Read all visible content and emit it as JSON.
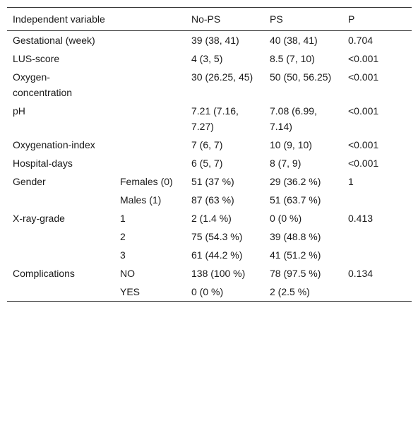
{
  "header": {
    "variable": "Independent variable",
    "sub": "",
    "nops": "No-PS",
    "ps": "PS",
    "p": "P"
  },
  "rows": [
    {
      "variable": "Gestational (week)",
      "sub": "",
      "nops": "39 (38, 41)",
      "ps": "40 (38, 41)",
      "p": "0.704"
    },
    {
      "variable": "LUS-score",
      "sub": "",
      "nops": "4 (3, 5)",
      "ps": "8.5 (7, 10)",
      "p": "<0.001"
    },
    {
      "variable": "Oxygen-concentration",
      "sub": "",
      "nops": "30 (26.25, 45)",
      "ps": "50 (50, 56.25)",
      "p": "<0.001"
    },
    {
      "variable": "pH",
      "sub": "",
      "nops": "7.21 (7.16, 7.27)",
      "ps": "7.08 (6.99, 7.14)",
      "p": "<0.001"
    },
    {
      "variable": "Oxygenation-index",
      "sub": "",
      "nops": "7 (6, 7)",
      "ps": "10 (9, 10)",
      "p": "<0.001"
    },
    {
      "variable": "Hospital-days",
      "sub": "",
      "nops": "6 (5, 7)",
      "ps": "8 (7, 9)",
      "p": "<0.001"
    },
    {
      "variable": "Gender",
      "sub": "Females (0)",
      "nops": "51 (37 %)",
      "ps": "29 (36.2 %)",
      "p": "1"
    },
    {
      "variable": "",
      "sub": "Males (1)",
      "nops": "87 (63 %)",
      "ps": "51 (63.7 %)",
      "p": ""
    },
    {
      "variable": "X-ray-grade",
      "sub": "1",
      "nops": "2 (1.4 %)",
      "ps": "0 (0 %)",
      "p": "0.413"
    },
    {
      "variable": "",
      "sub": "2",
      "nops": "75 (54.3 %)",
      "ps": "39 (48.8 %)",
      "p": ""
    },
    {
      "variable": "",
      "sub": "3",
      "nops": "61 (44.2 %)",
      "ps": "41 (51.2 %)",
      "p": ""
    },
    {
      "variable": "Complications",
      "sub": "NO",
      "nops": "138 (100 %)",
      "ps": "78 (97.5 %)",
      "p": "0.134"
    },
    {
      "variable": "",
      "sub": "YES",
      "nops": "0 (0 %)",
      "ps": "2 (2.5 %)",
      "p": ""
    }
  ]
}
